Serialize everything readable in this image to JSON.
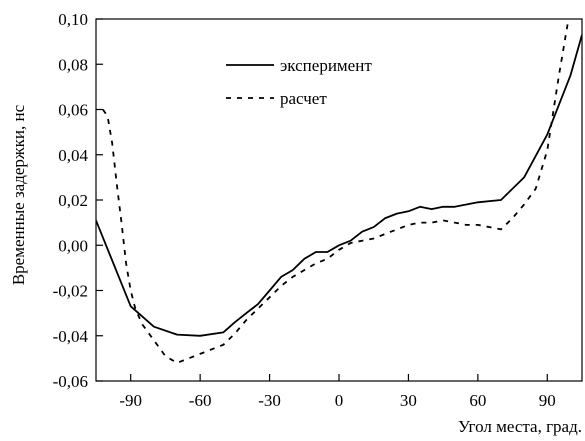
{
  "chart_data": {
    "type": "line",
    "xlabel": "Угол места, град.",
    "ylabel": "Временные задержки, нс",
    "xlim": [
      -105,
      105
    ],
    "ylim": [
      -0.06,
      0.1
    ],
    "x_ticks": [
      -90,
      -60,
      -30,
      0,
      30,
      60,
      90
    ],
    "x_tick_labels": [
      "-90",
      "-60",
      "-30",
      "0",
      "30",
      "60",
      "90"
    ],
    "y_ticks": [
      -0.06,
      -0.04,
      -0.02,
      0.0,
      0.02,
      0.04,
      0.06,
      0.08,
      0.1
    ],
    "y_tick_labels": [
      "-0,06",
      "-0,04",
      "-0,02",
      "0,00",
      "0,02",
      "0,04",
      "0,06",
      "0,08",
      "0,10"
    ],
    "grid": false,
    "legend_position": "top-center",
    "series": [
      {
        "name": "эксперимент",
        "style": "solid",
        "color": "#000000",
        "x": [
          -105,
          -90,
          -80,
          -70,
          -60,
          -50,
          -45,
          -40,
          -35,
          -30,
          -25,
          -20,
          -15,
          -10,
          -5,
          0,
          5,
          10,
          15,
          20,
          25,
          30,
          35,
          40,
          45,
          50,
          55,
          60,
          70,
          80,
          90,
          100,
          105
        ],
        "y": [
          0.011,
          -0.027,
          -0.036,
          -0.0395,
          -0.04,
          -0.0385,
          -0.034,
          -0.03,
          -0.026,
          -0.02,
          -0.014,
          -0.011,
          -0.006,
          -0.003,
          -0.003,
          0.0,
          0.002,
          0.006,
          0.008,
          0.012,
          0.014,
          0.015,
          0.017,
          0.016,
          0.017,
          0.017,
          0.018,
          0.019,
          0.02,
          0.03,
          0.049,
          0.075,
          0.093
        ]
      },
      {
        "name": "расчет",
        "style": "dashed",
        "color": "#000000",
        "x": [
          -102,
          -100,
          -98,
          -96,
          -94,
          -92,
          -90,
          -88,
          -85,
          -80,
          -75,
          -70,
          -65,
          -60,
          -55,
          -50,
          -45,
          -40,
          -35,
          -30,
          -25,
          -20,
          -15,
          -10,
          -5,
          0,
          5,
          10,
          15,
          20,
          25,
          30,
          35,
          40,
          45,
          50,
          55,
          60,
          65,
          70,
          75,
          80,
          85,
          90,
          95,
          100,
          102
        ],
        "y": [
          0.06,
          0.057,
          0.045,
          0.027,
          0.01,
          -0.008,
          -0.02,
          -0.028,
          -0.035,
          -0.042,
          -0.049,
          -0.052,
          -0.05,
          -0.048,
          -0.046,
          -0.044,
          -0.039,
          -0.033,
          -0.028,
          -0.023,
          -0.018,
          -0.014,
          -0.011,
          -0.008,
          -0.006,
          -0.002,
          0.001,
          0.002,
          0.003,
          0.005,
          0.007,
          0.009,
          0.01,
          0.01,
          0.011,
          0.01,
          0.009,
          0.009,
          0.008,
          0.007,
          0.012,
          0.018,
          0.025,
          0.042,
          0.075,
          0.105,
          0.115
        ]
      }
    ]
  }
}
